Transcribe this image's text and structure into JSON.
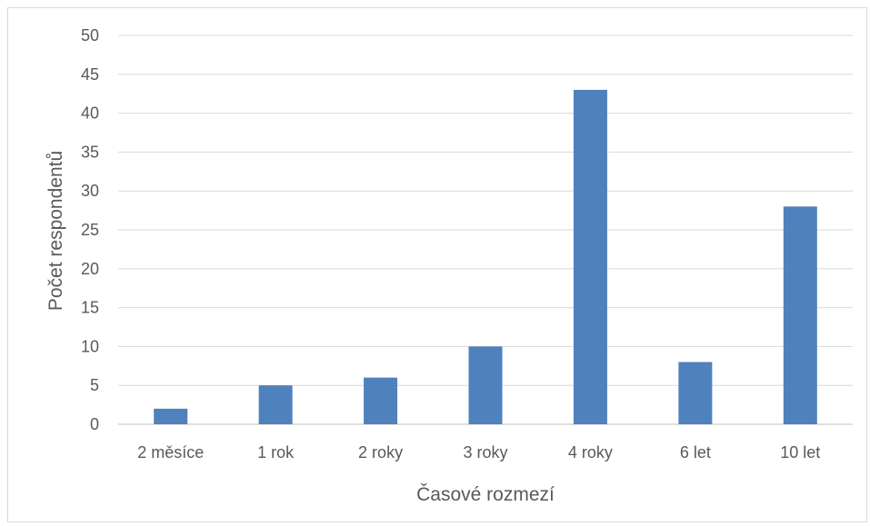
{
  "chart_data": {
    "type": "bar",
    "categories": [
      "2 měsíce",
      "1 rok",
      "2 roky",
      "3 roky",
      "4 roky",
      "6 let",
      "10 let"
    ],
    "values": [
      2,
      5,
      6,
      10,
      43,
      8,
      28
    ],
    "title": "",
    "xlabel": "Časové rozmezí",
    "ylabel": "Počet respondentů",
    "ylim": [
      0,
      50
    ],
    "yticks": [
      0,
      5,
      10,
      15,
      20,
      25,
      30,
      35,
      40,
      45,
      50
    ],
    "grid": true,
    "bar_color": "#4f81bd"
  }
}
